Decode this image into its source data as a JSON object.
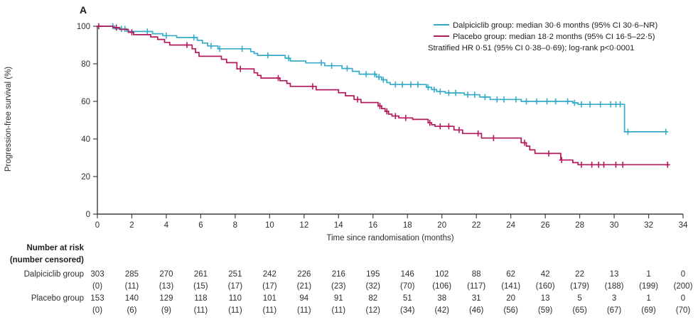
{
  "panel_label": "A",
  "colors": {
    "dalpiciclib": "#36acc8",
    "placebo": "#b5185a",
    "axis": "#3f3f3f",
    "text": "#2e2e2e"
  },
  "legend": {
    "entries": [
      {
        "label": "Dalpiciclib group: median 30·6 months (95% CI 30·6–NR)",
        "color_key": "dalpiciclib"
      },
      {
        "label": "Placebo group: median 18·2 months (95% CI 16·5–22·5)",
        "color_key": "placebo"
      }
    ],
    "note": "Stratified HR 0·51 (95% CI 0·38–0·69); log-rank p<0·0001"
  },
  "chart_data": {
    "type": "line",
    "subtype": "kaplan-meier-step",
    "title": "",
    "xlabel": "Time since randomisation (months)",
    "ylabel": "Progression-free survival (%)",
    "xlim": [
      0,
      34
    ],
    "ylim": [
      0,
      100
    ],
    "xticks": [
      0,
      2,
      4,
      6,
      8,
      10,
      12,
      14,
      16,
      18,
      20,
      22,
      24,
      26,
      28,
      30,
      32,
      34
    ],
    "yticks": [
      0,
      20,
      40,
      60,
      80,
      100
    ],
    "grid": false,
    "legend_position": "top-right",
    "series": [
      {
        "name": "Dalpiciclib group",
        "color_key": "dalpiciclib",
        "median_months": "30·6",
        "ci": "30·6–NR",
        "end_month": 33.05,
        "points": [
          [
            0,
            100
          ],
          [
            1.0,
            98.6
          ],
          [
            1.7,
            97.2
          ],
          [
            3.2,
            96
          ],
          [
            3.8,
            95
          ],
          [
            4.6,
            94
          ],
          [
            5.8,
            92.5
          ],
          [
            6.1,
            91
          ],
          [
            6.4,
            89.5
          ],
          [
            7.0,
            88
          ],
          [
            8.9,
            86.5
          ],
          [
            9.1,
            85.5
          ],
          [
            9.3,
            84.5
          ],
          [
            10.9,
            83
          ],
          [
            11.2,
            81.5
          ],
          [
            12.1,
            80.5
          ],
          [
            13.2,
            79
          ],
          [
            14.2,
            77.5
          ],
          [
            14.8,
            76
          ],
          [
            15.2,
            74.5
          ],
          [
            16.2,
            73
          ],
          [
            16.5,
            71.5
          ],
          [
            16.8,
            70
          ],
          [
            17.0,
            69
          ],
          [
            19.1,
            67.5
          ],
          [
            19.4,
            66.3
          ],
          [
            19.7,
            65.2
          ],
          [
            20.2,
            64.5
          ],
          [
            21.3,
            63.5
          ],
          [
            22.2,
            62.3
          ],
          [
            22.8,
            61
          ],
          [
            24.6,
            60
          ],
          [
            27.6,
            59.2
          ],
          [
            27.9,
            58.4
          ],
          [
            30.6,
            43.8
          ]
        ],
        "censor_months": [
          0.9,
          1.4,
          1.6,
          2.9,
          4.0,
          5.6,
          6.6,
          7.1,
          8.4,
          9.9,
          11.1,
          13.0,
          13.6,
          14.5,
          15.6,
          16.1,
          16.35,
          16.6,
          17.3,
          17.7,
          18.2,
          18.6,
          19.2,
          19.55,
          19.9,
          20.4,
          20.8,
          21.5,
          21.9,
          22.5,
          23.2,
          23.6,
          24.3,
          24.9,
          25.5,
          26.1,
          26.6,
          27.3,
          27.7,
          28.1,
          28.6,
          29.2,
          29.8,
          30.1,
          30.35,
          30.8,
          33.0
        ]
      },
      {
        "name": "Placebo group",
        "color_key": "placebo",
        "median_months": "18·2",
        "ci": "16·5–22·5",
        "end_month": 33.2,
        "points": [
          [
            0,
            100
          ],
          [
            0.9,
            99.3
          ],
          [
            1.3,
            98.3
          ],
          [
            1.8,
            96.8
          ],
          [
            2.1,
            95.5
          ],
          [
            3.1,
            94.3
          ],
          [
            3.5,
            93
          ],
          [
            3.9,
            91.4
          ],
          [
            4.2,
            90
          ],
          [
            5.5,
            88
          ],
          [
            5.7,
            86
          ],
          [
            5.9,
            84
          ],
          [
            7.2,
            82.4
          ],
          [
            7.5,
            80.6
          ],
          [
            8.1,
            77.3
          ],
          [
            9.1,
            75.2
          ],
          [
            9.3,
            73.8
          ],
          [
            9.5,
            72.4
          ],
          [
            10.6,
            71
          ],
          [
            11.0,
            69.6
          ],
          [
            11.2,
            68
          ],
          [
            12.7,
            66.2
          ],
          [
            14.0,
            64.6
          ],
          [
            14.4,
            63
          ],
          [
            14.9,
            61
          ],
          [
            15.3,
            59.4
          ],
          [
            16.3,
            57.6
          ],
          [
            16.5,
            56.2
          ],
          [
            16.7,
            54.7
          ],
          [
            16.9,
            53.2
          ],
          [
            17.1,
            52.2
          ],
          [
            17.5,
            51.2
          ],
          [
            18.3,
            50.4
          ],
          [
            19.2,
            48.6
          ],
          [
            19.4,
            47.6
          ],
          [
            19.6,
            46.7
          ],
          [
            20.7,
            44.8
          ],
          [
            21.2,
            42.9
          ],
          [
            22.3,
            40.5
          ],
          [
            24.6,
            38
          ],
          [
            24.9,
            36.2
          ],
          [
            25.1,
            34.2
          ],
          [
            25.4,
            32.3
          ],
          [
            26.9,
            28.8
          ],
          [
            27.6,
            27.4
          ],
          [
            27.9,
            26.3
          ]
        ],
        "censor_months": [
          0.08,
          1.1,
          2.0,
          5.2,
          8.3,
          10.5,
          12.5,
          15.1,
          16.4,
          16.8,
          17.3,
          17.9,
          19.3,
          19.9,
          20.4,
          21.0,
          22.1,
          23.0,
          24.8,
          26.2,
          26.95,
          28.1,
          28.7,
          29.1,
          29.4,
          30.1,
          30.5,
          33.1
        ]
      }
    ]
  },
  "number_at_risk": {
    "header_line1": "Number at risk",
    "header_line2": "(number censored)",
    "months": [
      0,
      2,
      4,
      6,
      8,
      10,
      12,
      14,
      16,
      18,
      20,
      22,
      24,
      26,
      28,
      30,
      32,
      34
    ],
    "rows": [
      {
        "label": "Dalpiciclib group",
        "at_risk": [
          "303",
          "285",
          "270",
          "261",
          "251",
          "242",
          "226",
          "216",
          "195",
          "146",
          "102",
          "88",
          "62",
          "42",
          "22",
          "13",
          "1",
          "0"
        ],
        "censored": [
          "(0)",
          "(11)",
          "(13)",
          "(15)",
          "(17)",
          "(17)",
          "(21)",
          "(23)",
          "(32)",
          "(70)",
          "(106)",
          "(117)",
          "(141)",
          "(160)",
          "(179)",
          "(188)",
          "(199)",
          "(200)"
        ]
      },
      {
        "label": "Placebo group",
        "at_risk": [
          "153",
          "140",
          "129",
          "118",
          "110",
          "101",
          "94",
          "91",
          "82",
          "51",
          "38",
          "31",
          "20",
          "13",
          "5",
          "3",
          "1",
          "0"
        ],
        "censored": [
          "(0)",
          "(6)",
          "(9)",
          "(11)",
          "(11)",
          "(11)",
          "(11)",
          "(11)",
          "(12)",
          "(34)",
          "(42)",
          "(46)",
          "(56)",
          "(59)",
          "(65)",
          "(67)",
          "(69)",
          "(70)"
        ]
      }
    ]
  }
}
